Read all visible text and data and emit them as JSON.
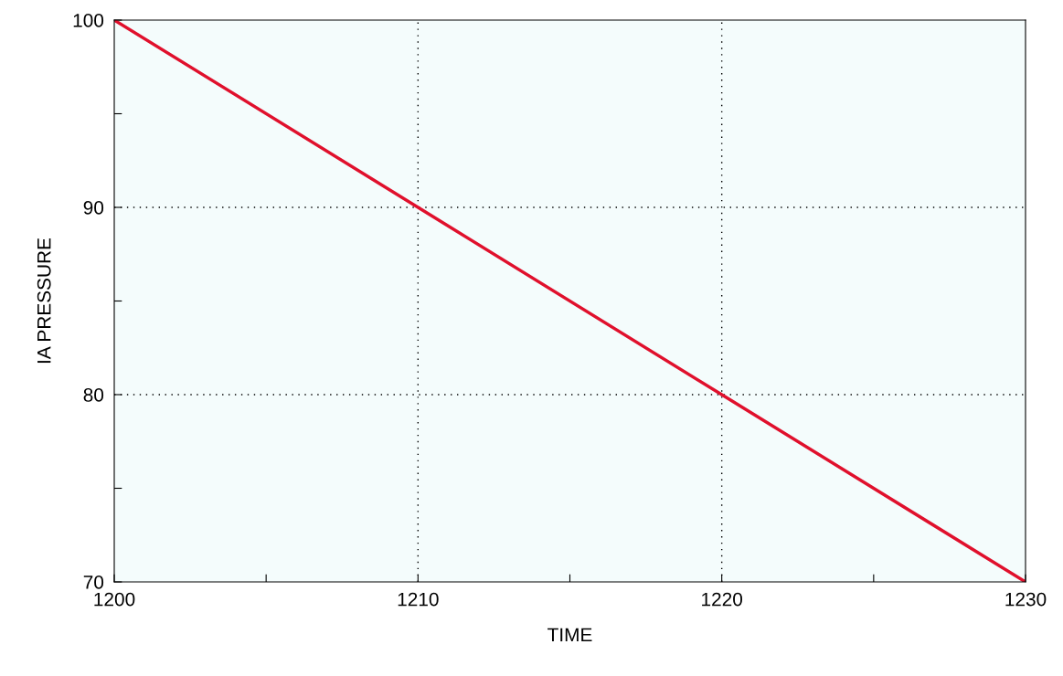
{
  "chart_data": {
    "type": "line",
    "xlabel": "TIME",
    "ylabel": "IA PRESSURE",
    "x": [
      1200,
      1210,
      1220,
      1230
    ],
    "series": [
      {
        "color": "#e0102c",
        "values": [
          100,
          90,
          80,
          70
        ]
      }
    ],
    "xlim": [
      1200,
      1230
    ],
    "ylim": [
      70,
      100
    ],
    "xticks": [
      1200,
      {
        "value": 1205,
        "label": null
      },
      1210,
      {
        "value": 1215,
        "label": null
      },
      1220,
      {
        "value": 1225,
        "label": null
      },
      1230
    ],
    "yticks": [
      70,
      {
        "value": 75,
        "label": null
      },
      80,
      {
        "value": 85,
        "label": null
      },
      90,
      {
        "value": 95,
        "label": null
      },
      100
    ],
    "grid": true,
    "line_style": "solid",
    "marker": "none"
  }
}
